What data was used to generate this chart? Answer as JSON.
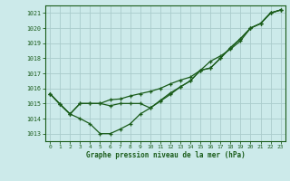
{
  "xlabel": "Graphe pression niveau de la mer (hPa)",
  "bg_color": "#cceaea",
  "grid_color": "#aacccc",
  "line_color": "#1a5c1a",
  "label_color": "#1a5c1a",
  "ylim": [
    1012.5,
    1021.5
  ],
  "xlim": [
    -0.5,
    23.5
  ],
  "yticks": [
    1013,
    1014,
    1015,
    1016,
    1017,
    1018,
    1019,
    1020,
    1021
  ],
  "xticks": [
    0,
    1,
    2,
    3,
    4,
    5,
    6,
    7,
    8,
    9,
    10,
    11,
    12,
    13,
    14,
    15,
    16,
    17,
    18,
    19,
    20,
    21,
    22,
    23
  ],
  "series1": [
    1015.65,
    1014.95,
    1014.3,
    1014.0,
    1013.65,
    1013.0,
    1013.0,
    1013.3,
    1013.65,
    1014.3,
    1014.7,
    1015.15,
    1015.6,
    1016.1,
    1016.5,
    1017.2,
    1017.35,
    1018.0,
    1018.7,
    1019.3,
    1020.0,
    1020.3,
    1021.0,
    1021.2
  ],
  "series2": [
    1015.65,
    1014.95,
    1014.3,
    1015.0,
    1015.0,
    1015.0,
    1014.85,
    1015.0,
    1015.0,
    1015.0,
    1014.7,
    1015.2,
    1015.7,
    1016.1,
    1016.5,
    1017.2,
    1017.35,
    1018.0,
    1018.7,
    1019.3,
    1020.0,
    1020.3,
    1021.0,
    1021.2
  ],
  "series3": [
    1015.65,
    1014.95,
    1014.3,
    1015.0,
    1015.0,
    1015.0,
    1015.25,
    1015.3,
    1015.5,
    1015.65,
    1015.8,
    1016.0,
    1016.3,
    1016.55,
    1016.75,
    1017.2,
    1017.8,
    1018.15,
    1018.6,
    1019.15,
    1020.0,
    1020.3,
    1021.0,
    1021.2
  ]
}
